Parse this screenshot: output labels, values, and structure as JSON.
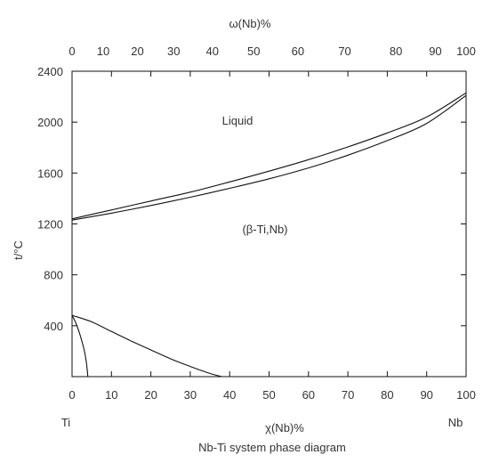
{
  "chart_data": {
    "type": "line",
    "caption": "Nb-Ti system phase diagram",
    "top_axis": {
      "label": "ω(Nb)%",
      "ticks": [
        0,
        10,
        20,
        30,
        40,
        50,
        60,
        70,
        80,
        90,
        100
      ],
      "positions_at_x": [
        0,
        7.9,
        16.6,
        25.8,
        35.6,
        46.1,
        57.3,
        69.2,
        82.2,
        92.2,
        100
      ],
      "tick_label_values": [
        0,
        10,
        20,
        30,
        40,
        50,
        60,
        70,
        80,
        90,
        100
      ]
    },
    "bottom_axis": {
      "label": "χ(Nb)%",
      "ticks": [
        0,
        10,
        20,
        30,
        40,
        50,
        60,
        70,
        80,
        90,
        100
      ],
      "end_labels": {
        "left": "Ti",
        "right": "Nb"
      },
      "xlim": [
        0,
        100
      ]
    },
    "y_axis": {
      "label": "t/°C",
      "ticks": [
        400,
        800,
        1200,
        1600,
        2000,
        2400
      ],
      "ylim": [
        0,
        2400
      ]
    },
    "region_labels": [
      {
        "text": "Liquid",
        "x": 40,
        "y": 1830
      },
      {
        "text": "(β-Ti,Nb)",
        "x": 47,
        "y": 1040
      }
    ],
    "series": [
      {
        "id": "liquidus",
        "x": [
          0,
          10,
          20,
          30,
          40,
          50,
          60,
          70,
          80,
          90,
          100
        ],
        "y": [
          1240,
          1310,
          1380,
          1450,
          1530,
          1615,
          1705,
          1805,
          1915,
          2040,
          2230
        ]
      },
      {
        "id": "solidus",
        "x": [
          0,
          10,
          20,
          30,
          40,
          50,
          60,
          70,
          80,
          90,
          100
        ],
        "y": [
          1230,
          1285,
          1345,
          1410,
          1480,
          1555,
          1640,
          1740,
          1855,
          1990,
          2210
        ]
      },
      {
        "id": "beta-transus",
        "x": [
          0,
          5,
          10,
          15,
          20,
          25,
          30,
          35,
          38
        ],
        "y": [
          482,
          430,
          355,
          280,
          210,
          140,
          80,
          25,
          0
        ]
      },
      {
        "id": "alpha-solvus",
        "x": [
          0,
          1,
          2,
          3,
          3.5,
          3.8,
          4
        ],
        "y": [
          482,
          420,
          330,
          220,
          140,
          70,
          0
        ]
      }
    ]
  }
}
